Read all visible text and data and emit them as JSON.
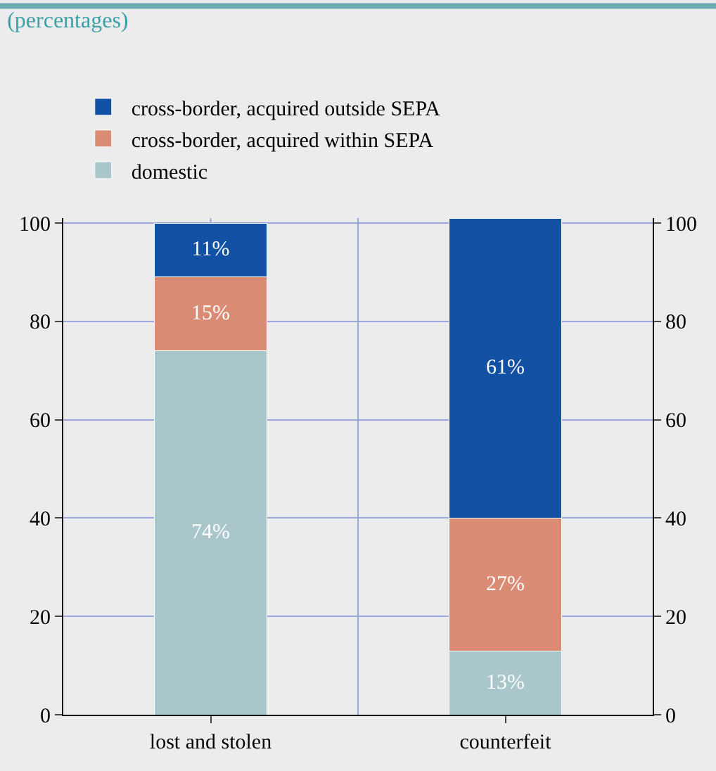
{
  "chart_data": {
    "type": "bar",
    "title": "(percentages)",
    "stacked": true,
    "categories": [
      "lost and stolen",
      "counterfeit"
    ],
    "series": [
      {
        "name": "domestic",
        "color": "#a9c6cb",
        "values": [
          74,
          13
        ],
        "value_labels": [
          "74%",
          "13%"
        ]
      },
      {
        "name": "cross-border, acquired within SEPA",
        "color": "#d98c73",
        "values": [
          15,
          27
        ],
        "value_labels": [
          "15%",
          "27%"
        ]
      },
      {
        "name": "cross-border, acquired outside SEPA",
        "color": "#1250a3",
        "values": [
          11,
          61
        ],
        "value_labels": [
          "11%",
          "61%"
        ]
      }
    ],
    "ylim": [
      0,
      101
    ],
    "yticks": [
      0,
      20,
      40,
      60,
      80,
      100
    ],
    "y2lim": [
      0,
      101
    ],
    "y2ticks": [
      0,
      20,
      40,
      60,
      80,
      100
    ],
    "grid": true,
    "legend": "top left"
  }
}
